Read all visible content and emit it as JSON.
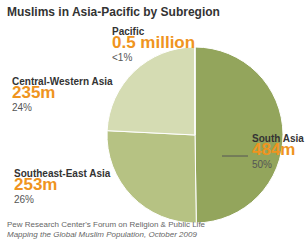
{
  "chart_data": {
    "type": "pie",
    "title": "Muslims in Asia-Pacific by Subregion",
    "categories": [
      "South Asia",
      "Southeast-East Asia",
      "Central-Western Asia",
      "Pacific"
    ],
    "values": [
      484,
      253,
      235,
      0.5
    ],
    "value_labels": [
      "484m",
      "253m",
      "235m",
      "0.5 million"
    ],
    "percent_labels": [
      "50%",
      "26%",
      "24%",
      "<1%"
    ],
    "colors": [
      "#93a55c",
      "#b6c283",
      "#d5dcb3",
      "#eef1dc"
    ],
    "data_labels": true,
    "source": [
      "Pew Research Center's Forum on Religion & Public Life",
      "Mapping the Global Muslim Population, October 2009"
    ]
  }
}
